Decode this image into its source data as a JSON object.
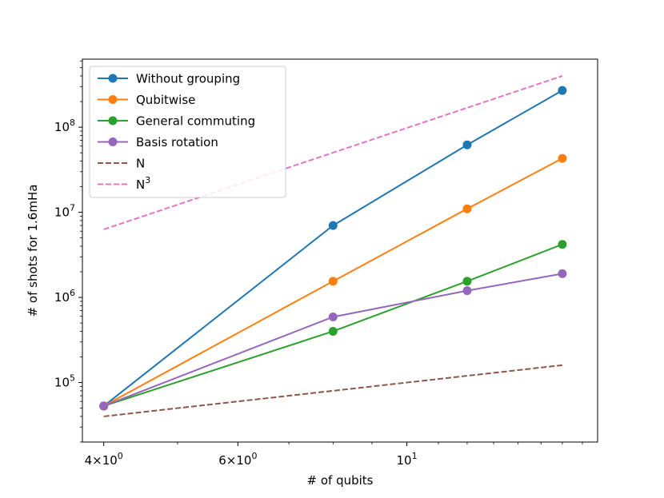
{
  "chart_data": {
    "type": "line",
    "title": "",
    "xlabel": "# of qubits",
    "ylabel": "# of shots for 1.6mHa",
    "xscale": "log",
    "yscale": "log",
    "xlim": [
      3.75,
      17.8
    ],
    "ylim": [
      20000,
      630000000
    ],
    "grid": false,
    "legend_position": "top-left",
    "x_ticks": [
      {
        "value": 4,
        "mantissa": "4",
        "base": "10",
        "exp": "0"
      },
      {
        "value": 6,
        "mantissa": "6",
        "base": "10",
        "exp": "0"
      },
      {
        "value": 10,
        "mantissa": "",
        "base": "10",
        "exp": "1"
      }
    ],
    "x_minor_ticks": [
      5,
      7,
      8,
      9,
      11,
      12,
      13,
      14,
      15,
      16,
      17
    ],
    "y_ticks": [
      {
        "value": 100000,
        "base": "10",
        "exp": "5"
      },
      {
        "value": 1000000,
        "base": "10",
        "exp": "6"
      },
      {
        "value": 10000000,
        "base": "10",
        "exp": "7"
      },
      {
        "value": 100000000,
        "base": "10",
        "exp": "8"
      }
    ],
    "series": [
      {
        "name": "Without grouping",
        "color": "#1f77b4",
        "style": "solid",
        "marker": true,
        "x": [
          4,
          8,
          12,
          16
        ],
        "values": [
          53000,
          7000000,
          62000000,
          270000000
        ]
      },
      {
        "name": "Qubitwise",
        "color": "#ff7f0e",
        "style": "solid",
        "marker": true,
        "x": [
          4,
          8,
          12,
          16
        ],
        "values": [
          53000,
          1550000,
          11000000,
          43000000
        ]
      },
      {
        "name": "General commuting",
        "color": "#2ca02c",
        "style": "solid",
        "marker": true,
        "x": [
          4,
          8,
          12,
          16
        ],
        "values": [
          53000,
          400000,
          1550000,
          4200000
        ]
      },
      {
        "name": "Basis rotation",
        "color": "#9467bd",
        "style": "solid",
        "marker": true,
        "x": [
          4,
          8,
          12,
          16
        ],
        "values": [
          53000,
          590000,
          1200000,
          1900000
        ]
      },
      {
        "name": "N",
        "color": "#8c564b",
        "style": "dashed",
        "marker": false,
        "x": [
          4,
          16
        ],
        "values": [
          40000,
          160000
        ]
      },
      {
        "name": "N",
        "superscript": "3",
        "color": "#e377c2",
        "style": "dashed",
        "marker": false,
        "x": [
          4,
          16
        ],
        "values": [
          6300000,
          400000000
        ]
      }
    ]
  }
}
